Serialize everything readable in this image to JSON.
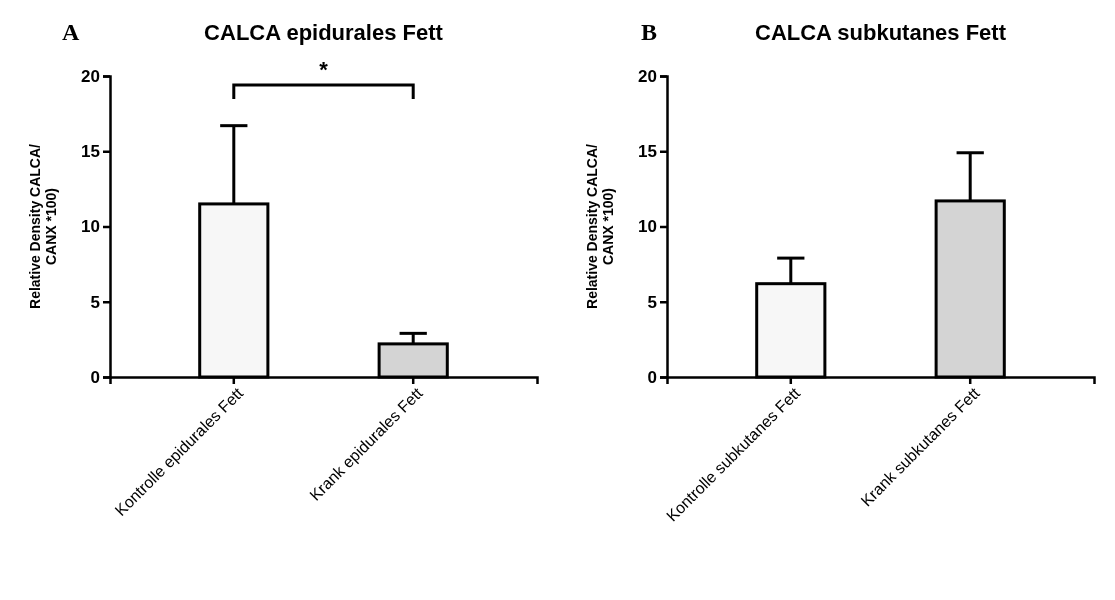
{
  "chart_data": [
    {
      "type": "bar",
      "title": "CALCA epidurales Fett",
      "ylabel": "Relative Density CALCA/\nCANX *100)",
      "categories": [
        "Kontrolle epidurales Fett",
        "Krank epidurales Fett"
      ],
      "values": [
        11.5,
        2.2
      ],
      "errors": [
        [
          11.5,
          16.7
        ],
        [
          2.2,
          2.9
        ]
      ],
      "colors": [
        "#f7f7f7",
        "#d4d4d4"
      ],
      "ylim": [
        0,
        20
      ],
      "yticks": [
        0,
        5,
        10,
        15,
        20
      ],
      "annotations": [
        "A",
        "*"
      ]
    },
    {
      "type": "bar",
      "title": "CALCA subkutanes Fett",
      "ylabel": "Relative Density CALCA/\nCANX *100)",
      "categories": [
        "Kontrolle subkutanes Fett",
        "Krank subkutanes Fett"
      ],
      "values": [
        6.2,
        11.7
      ],
      "errors": [
        [
          6.2,
          7.9
        ],
        [
          11.7,
          14.9
        ]
      ],
      "colors": [
        "#f7f7f7",
        "#d4d4d4"
      ],
      "ylim": [
        0,
        20
      ],
      "yticks": [
        0,
        5,
        10,
        15,
        20
      ],
      "annotations": [
        "B"
      ]
    }
  ]
}
